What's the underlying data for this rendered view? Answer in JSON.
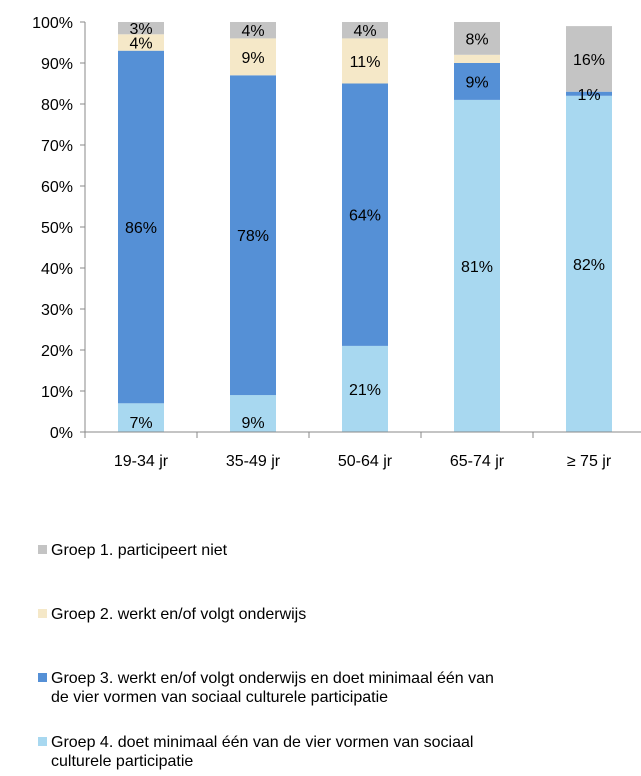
{
  "chart_data": {
    "type": "bar",
    "stacked": true,
    "categories": [
      "19-34 jr",
      "35-49 jr",
      "50-64 jr",
      "65-74 jr",
      "≥ 75 jr"
    ],
    "ylim": [
      0,
      100
    ],
    "yticks": [
      "0%",
      "10%",
      "20%",
      "30%",
      "40%",
      "50%",
      "60%",
      "70%",
      "80%",
      "90%",
      "100%"
    ],
    "grid": false,
    "legend_position": "bottom",
    "series": [
      {
        "name": "Groep 4. doet minimaal één van de vier vormen van sociaal culturele participatie",
        "color": "#a8d8f0",
        "values": [
          7,
          9,
          21,
          81,
          82
        ],
        "labels": [
          "7%",
          "9%",
          "21%",
          "81%",
          "82%"
        ]
      },
      {
        "name": "Groep 3. werkt en/of volgt onderwijs en doet minimaal één van de vier vormen van sociaal culturele participatie",
        "color": "#5590d6",
        "values": [
          86,
          78,
          64,
          9,
          1
        ],
        "labels": [
          "86%",
          "78%",
          "64%",
          "9%",
          "1%"
        ]
      },
      {
        "name": "Groep 2. werkt en/of volgt onderwijs",
        "color": "#f5e8c8",
        "values": [
          4,
          9,
          11,
          2,
          0
        ],
        "labels": [
          "4%",
          "9%",
          "11%",
          "",
          ""
        ]
      },
      {
        "name": "Groep 1. participeert niet",
        "color": "#c4c4c4",
        "values": [
          3,
          4,
          4,
          8,
          16
        ],
        "labels": [
          "3%",
          "4%",
          "4%",
          "8%",
          "16%"
        ]
      }
    ]
  },
  "legend": [
    {
      "label": "Groep 1. participeert niet",
      "color": "#c4c4c4"
    },
    {
      "label": "Groep 2. werkt en/of volgt onderwijs",
      "color": "#f5e8c8"
    },
    {
      "label": "Groep 3. werkt en/of volgt onderwijs en doet minimaal één van\nde vier vormen van sociaal culturele participatie",
      "color": "#5590d6"
    },
    {
      "label": "Groep 4. doet minimaal één van de vier vormen van sociaal\nculturele participatie",
      "color": "#a8d8f0"
    }
  ]
}
